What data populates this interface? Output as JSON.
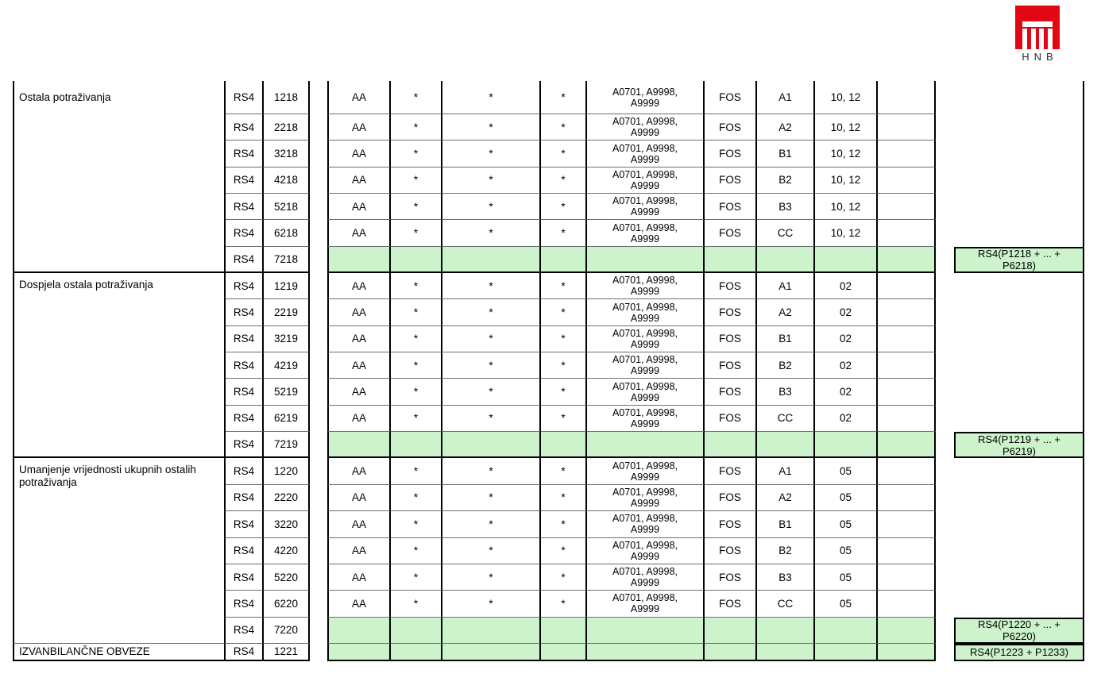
{
  "logo": {
    "text": "HNB"
  },
  "colors": {
    "brand_red": "#e30613",
    "highlight_green": "#ccf3cc"
  },
  "table": {
    "shared": {
      "rs4_label": "RS4",
      "aa": "AA",
      "star": "*",
      "asset_codes": [
        "A0701, A9998,",
        "A9999"
      ],
      "fos": "FOS",
      "grades": [
        "A1",
        "A2",
        "B1",
        "B2",
        "B3",
        "CC"
      ]
    },
    "groups": [
      {
        "label": "Ostala potraživanja",
        "codes": [
          "1218",
          "2218",
          "3218",
          "4218",
          "5218",
          "6218"
        ],
        "total_code": "7218",
        "instruments": "10, 12",
        "formula": [
          "RS4(P1218 + ... +",
          "P6218)"
        ]
      },
      {
        "label": "Dospjela ostala potraživanja",
        "codes": [
          "1219",
          "2219",
          "3219",
          "4219",
          "5219",
          "6219"
        ],
        "total_code": "7219",
        "instruments": "02",
        "formula": [
          "RS4(P1219 + ... +",
          "P6219)"
        ]
      },
      {
        "label": "Umanjenje vrijednosti ukupnih ostalih potraživanja",
        "codes": [
          "1220",
          "2220",
          "3220",
          "4220",
          "5220",
          "6220"
        ],
        "total_code": "7220",
        "instruments": "05",
        "formula": [
          "RS4(P1220 + ... +",
          "P6220)"
        ]
      }
    ],
    "final_row": {
      "label": "IZVANBILANČNE OBVEZE",
      "code": "1221",
      "formula": [
        "RS4(P1223 + P1233)"
      ]
    }
  }
}
